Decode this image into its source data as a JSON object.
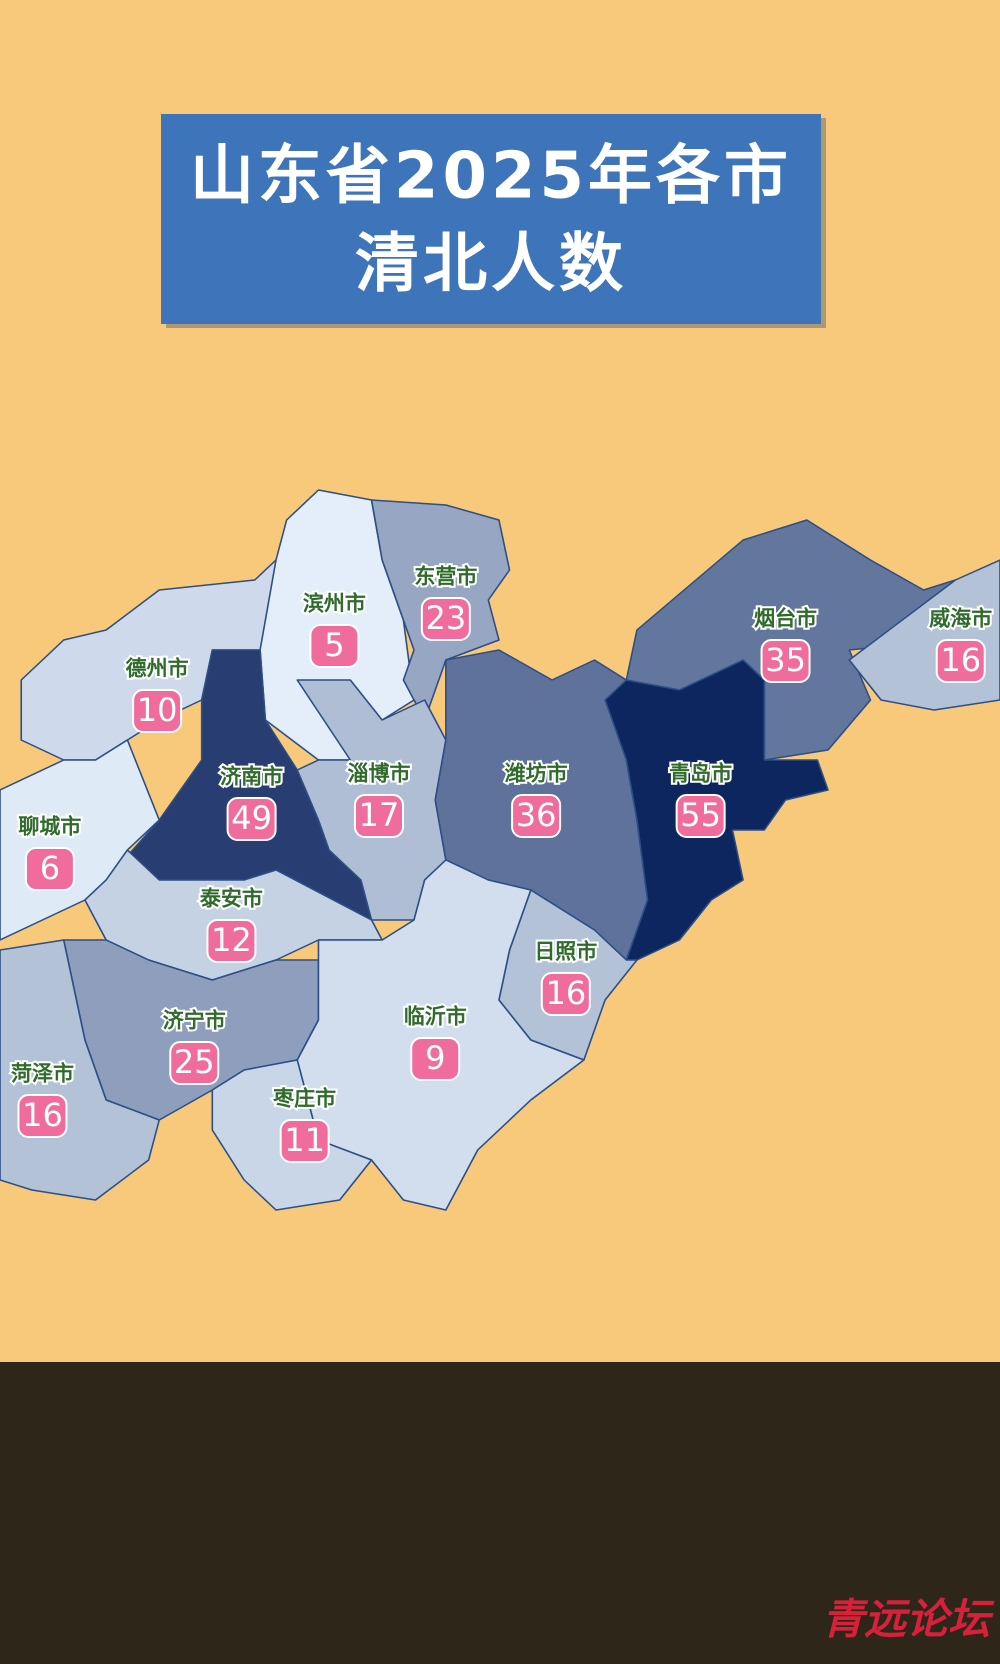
{
  "title": [
    "山东省2025年各市",
    "清北人数"
  ],
  "regions": [
    {
      "name": "滨州市",
      "value": 5
    },
    {
      "name": "东营市",
      "value": 23
    },
    {
      "name": "德州市",
      "value": 10
    },
    {
      "name": "济南市",
      "value": 49
    },
    {
      "name": "淄博市",
      "value": 17
    },
    {
      "name": "潍坊市",
      "value": 36
    },
    {
      "name": "烟台市",
      "value": 35
    },
    {
      "name": "威海市",
      "value": 16
    },
    {
      "name": "青岛市",
      "value": 55
    },
    {
      "name": "聊城市",
      "value": 6
    },
    {
      "name": "泰安市",
      "value": 12
    },
    {
      "name": "日照市",
      "value": 16
    },
    {
      "name": "济宁市",
      "value": 25
    },
    {
      "name": "临沂市",
      "value": 9
    },
    {
      "name": "菏泽市",
      "value": 16
    },
    {
      "name": "枣庄市",
      "value": 11
    }
  ],
  "watermark": "青远论坛"
}
